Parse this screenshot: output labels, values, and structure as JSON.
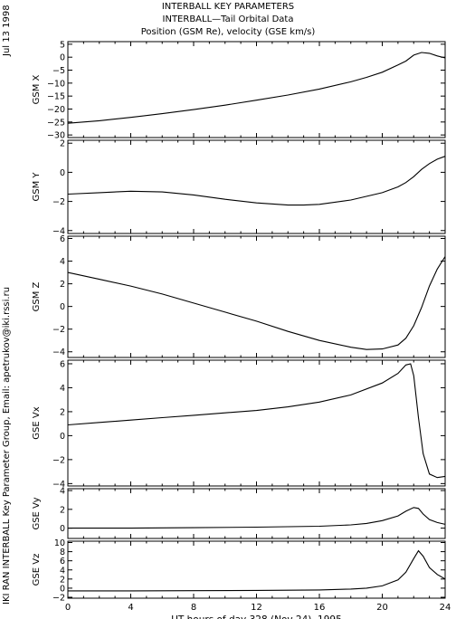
{
  "header": {
    "line1": "INTERBALL KEY PARAMETERS",
    "line2": "INTERBALL—Tail Orbital Data",
    "line3": "Position (GSM Re), velocity (GSE km/s)"
  },
  "side": {
    "date": "Jul 13 1998",
    "credit": "IKI RAN INTERBALL Key Parameter Group, Email: apetrukov@iki.rssi.ru"
  },
  "chart_data": {
    "type": "line",
    "xlabel": "UT hours of day 328 (Nov 24), 1995",
    "xlim": [
      0,
      24
    ],
    "xticks": [
      0,
      4,
      8,
      12,
      16,
      20,
      24
    ],
    "panels": [
      {
        "ylabel": "GSM X",
        "ylim": [
          -31,
          6
        ],
        "yticks": [
          5,
          0,
          -5,
          -10,
          -15,
          -20,
          -25,
          -30
        ],
        "x": [
          0,
          2,
          4,
          6,
          8,
          10,
          12,
          14,
          16,
          18,
          19,
          20,
          21,
          21.5,
          22,
          22.5,
          23,
          23.5,
          24
        ],
        "y": [
          -25.5,
          -24.5,
          -23.2,
          -21.8,
          -20.2,
          -18.5,
          -16.6,
          -14.6,
          -12.3,
          -9.5,
          -7.8,
          -5.8,
          -3.0,
          -1.5,
          0.8,
          1.8,
          1.5,
          0.5,
          -0.3
        ]
      },
      {
        "ylabel": "GSM Y",
        "ylim": [
          -4.2,
          2.2
        ],
        "yticks": [
          2,
          0,
          -2,
          -4
        ],
        "x": [
          0,
          2,
          4,
          6,
          8,
          10,
          12,
          14,
          15,
          16,
          18,
          20,
          21,
          21.5,
          22,
          22.5,
          23,
          23.5,
          24
        ],
        "y": [
          -1.5,
          -1.4,
          -1.3,
          -1.35,
          -1.55,
          -1.85,
          -2.1,
          -2.25,
          -2.25,
          -2.2,
          -1.9,
          -1.4,
          -1.0,
          -0.7,
          -0.3,
          0.2,
          0.6,
          0.9,
          1.1
        ]
      },
      {
        "ylabel": "GSM Z",
        "ylim": [
          -4.5,
          6.2
        ],
        "yticks": [
          6,
          4,
          2,
          0,
          -2,
          -4
        ],
        "x": [
          0,
          2,
          4,
          6,
          8,
          10,
          12,
          14,
          16,
          18,
          19,
          20,
          21,
          21.5,
          22,
          22.5,
          23,
          23.5,
          24
        ],
        "y": [
          3.0,
          2.4,
          1.8,
          1.1,
          0.3,
          -0.5,
          -1.3,
          -2.2,
          -3.0,
          -3.6,
          -3.8,
          -3.75,
          -3.4,
          -2.8,
          -1.7,
          -0.1,
          1.8,
          3.3,
          4.4
        ]
      },
      {
        "ylabel": "GSE Vx",
        "ylim": [
          -4.2,
          6.3
        ],
        "yticks": [
          6,
          4,
          2,
          0,
          -2,
          -4
        ],
        "x": [
          0,
          2,
          4,
          6,
          8,
          10,
          12,
          14,
          16,
          18,
          20,
          21,
          21.5,
          21.8,
          22,
          22.3,
          22.6,
          23,
          23.5,
          24
        ],
        "y": [
          0.9,
          1.1,
          1.3,
          1.5,
          1.7,
          1.9,
          2.1,
          2.4,
          2.8,
          3.4,
          4.4,
          5.2,
          5.9,
          6.0,
          5.0,
          1.5,
          -1.5,
          -3.2,
          -3.5,
          -3.4
        ]
      },
      {
        "ylabel": "GSE Vy",
        "ylim": [
          -1.1,
          4.2
        ],
        "yticks": [
          4,
          2,
          0
        ],
        "x": [
          0,
          4,
          8,
          12,
          14,
          16,
          18,
          19,
          20,
          21,
          21.5,
          22,
          22.3,
          22.6,
          23,
          23.5,
          24
        ],
        "y": [
          0.0,
          0.0,
          0.05,
          0.1,
          0.15,
          0.2,
          0.35,
          0.5,
          0.8,
          1.3,
          1.8,
          2.2,
          2.1,
          1.5,
          0.9,
          0.6,
          0.4
        ]
      },
      {
        "ylabel": "GSE Vz",
        "ylim": [
          -2.2,
          10.3
        ],
        "yticks": [
          10,
          8,
          6,
          4,
          2,
          0,
          -2
        ],
        "x": [
          0,
          4,
          8,
          12,
          14,
          16,
          18,
          19,
          20,
          21,
          21.5,
          22,
          22.3,
          22.6,
          23,
          23.5,
          24
        ],
        "y": [
          -0.6,
          -0.6,
          -0.55,
          -0.5,
          -0.45,
          -0.4,
          -0.2,
          0.0,
          0.5,
          1.8,
          3.5,
          6.5,
          8.2,
          7.0,
          4.5,
          3.0,
          2.0
        ]
      }
    ]
  }
}
